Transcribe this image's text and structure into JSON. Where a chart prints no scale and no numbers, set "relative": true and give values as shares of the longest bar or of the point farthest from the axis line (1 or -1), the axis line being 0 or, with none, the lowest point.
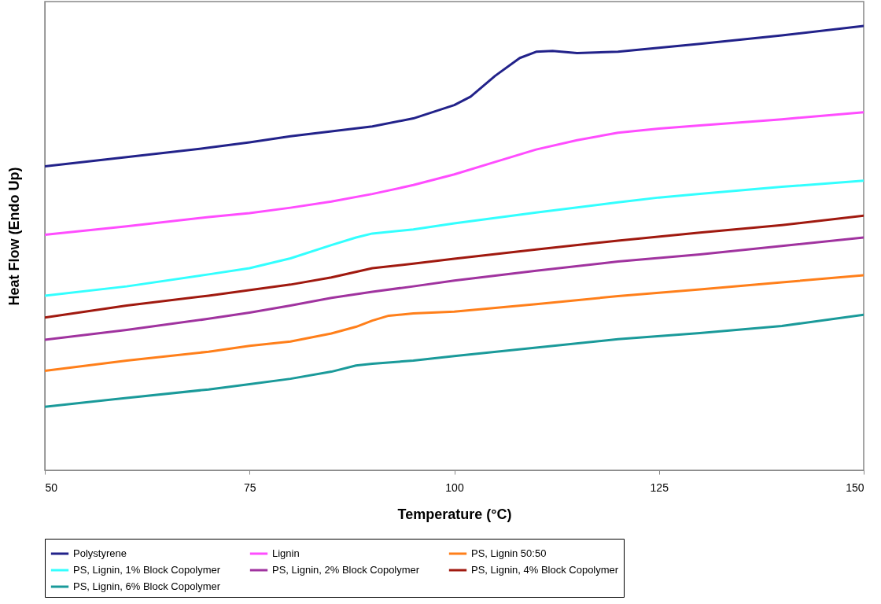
{
  "chart_data": {
    "type": "line",
    "xlabel": "Temperature (°C)",
    "ylabel": "Heat Flow (Endo Up)",
    "relative": true,
    "xlim": [
      50,
      150
    ],
    "xticks": [
      50,
      75,
      100,
      125,
      150
    ],
    "legend": "bottom",
    "series": [
      {
        "name": "Polystyrene",
        "color": "#22228a",
        "x": [
          50,
          60,
          70,
          75,
          80,
          90,
          95,
          100,
          102,
          105,
          108,
          110,
          112,
          115,
          120,
          125,
          130,
          140,
          150
        ],
        "values": [
          0.684,
          0.705,
          0.726,
          0.738,
          0.752,
          0.774,
          0.792,
          0.822,
          0.841,
          0.888,
          0.928,
          0.942,
          0.944,
          0.939,
          0.942,
          0.951,
          0.96,
          0.979,
          1
        ]
      },
      {
        "name": "Lignin",
        "color": "#ff4dff",
        "x": [
          50,
          60,
          70,
          75,
          80,
          85,
          90,
          95,
          100,
          105,
          110,
          115,
          120,
          125,
          130,
          140,
          150
        ],
        "values": [
          0.53,
          0.549,
          0.57,
          0.579,
          0.591,
          0.605,
          0.622,
          0.642,
          0.666,
          0.694,
          0.722,
          0.743,
          0.76,
          0.769,
          0.776,
          0.79,
          0.806
        ]
      },
      {
        "name": "PS, Lignin 50:50",
        "color": "#ff7f1a",
        "x": [
          50,
          60,
          70,
          75,
          80,
          85,
          88,
          90,
          92,
          95,
          100,
          110,
          120,
          130,
          140,
          150
        ],
        "values": [
          0.224,
          0.247,
          0.267,
          0.28,
          0.29,
          0.308,
          0.323,
          0.337,
          0.348,
          0.353,
          0.357,
          0.374,
          0.392,
          0.407,
          0.423,
          0.439
        ]
      },
      {
        "name": "PS, Lignin, 1% Block Copolymer",
        "color": "#33ffff",
        "x": [
          50,
          60,
          70,
          75,
          80,
          85,
          88,
          90,
          95,
          100,
          110,
          120,
          125,
          130,
          140,
          150
        ],
        "values": [
          0.393,
          0.414,
          0.441,
          0.455,
          0.477,
          0.507,
          0.524,
          0.533,
          0.542,
          0.556,
          0.58,
          0.603,
          0.614,
          0.622,
          0.638,
          0.652
        ]
      },
      {
        "name": "PS, Lignin, 2% Block Copolymer",
        "color": "#a0339f",
        "x": [
          50,
          60,
          70,
          75,
          80,
          85,
          90,
          95,
          100,
          110,
          120,
          130,
          140,
          150
        ],
        "values": [
          0.294,
          0.316,
          0.341,
          0.355,
          0.371,
          0.388,
          0.402,
          0.414,
          0.427,
          0.449,
          0.47,
          0.486,
          0.505,
          0.524
        ]
      },
      {
        "name": "PS, Lignin, 4% Block Copolymer",
        "color": "#a0190f",
        "x": [
          50,
          60,
          70,
          80,
          85,
          90,
          95,
          100,
          110,
          120,
          130,
          140,
          150
        ],
        "values": [
          0.344,
          0.371,
          0.393,
          0.418,
          0.434,
          0.455,
          0.465,
          0.476,
          0.497,
          0.517,
          0.535,
          0.552,
          0.573
        ]
      },
      {
        "name": "PS, Lignin, 6% Block Copolymer",
        "color": "#1a9a9a",
        "x": [
          50,
          60,
          70,
          75,
          80,
          85,
          88,
          90,
          95,
          100,
          110,
          120,
          130,
          140,
          150
        ],
        "values": [
          0.143,
          0.163,
          0.182,
          0.194,
          0.206,
          0.222,
          0.236,
          0.24,
          0.247,
          0.257,
          0.276,
          0.295,
          0.309,
          0.325,
          0.35
        ]
      }
    ]
  }
}
